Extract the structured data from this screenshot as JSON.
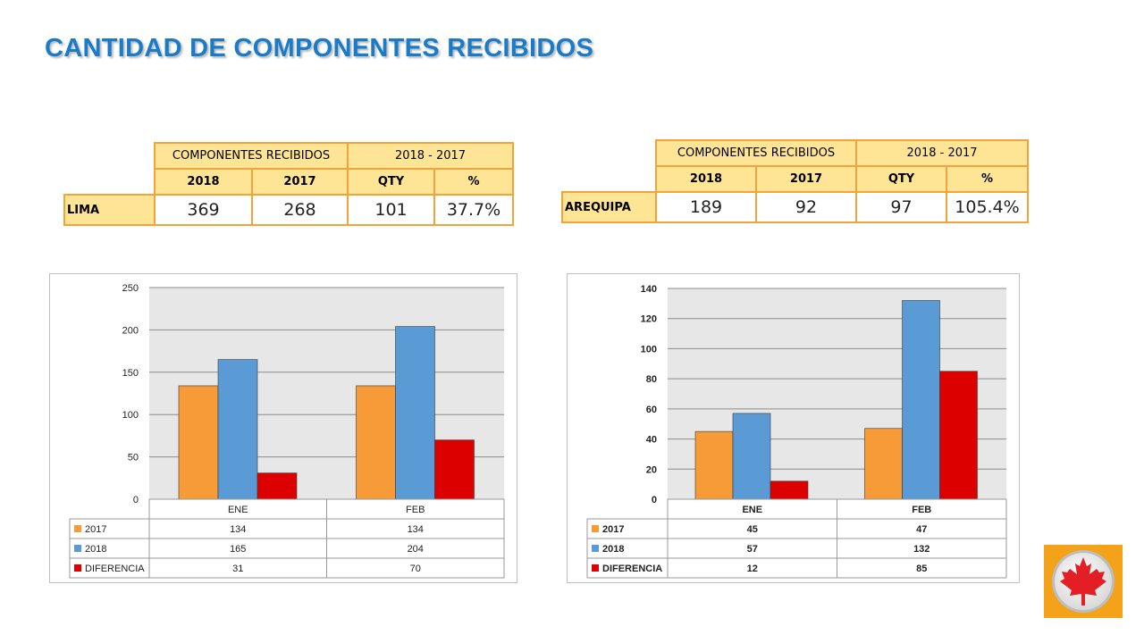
{
  "page": {
    "title": "CANTIDAD DE COMPONENTES RECIBIDOS"
  },
  "tables": [
    {
      "header_main": "COMPONENTES RECIBIDOS",
      "header_period": "2018 - 2017",
      "cols": [
        "2018",
        "2017",
        "QTY",
        "%"
      ],
      "row_label": "LIMA",
      "values": [
        "369",
        "268",
        "101",
        "37.7%"
      ]
    },
    {
      "header_main": "COMPONENTES RECIBIDOS",
      "header_period": "2018 - 2017",
      "cols": [
        "2018",
        "2017",
        "QTY",
        "%"
      ],
      "row_label": "AREQUIPA",
      "values": [
        "189",
        "92",
        "97",
        "105.4%"
      ]
    }
  ],
  "chart_data": [
    {
      "type": "bar",
      "categories": [
        "ENE",
        "FEB"
      ],
      "series": [
        {
          "name": "2017",
          "values": [
            134,
            134
          ],
          "color": "#f79a38"
        },
        {
          "name": "2018",
          "values": [
            165,
            204
          ],
          "color": "#5b9bd5"
        },
        {
          "name": "DIFERENCIA",
          "values": [
            31,
            70
          ],
          "color": "#dd0000"
        }
      ],
      "ylim": [
        0,
        250
      ],
      "yticks": [
        0,
        50,
        100,
        150,
        200,
        250
      ],
      "grid": true,
      "legend": "data-table-below",
      "label_bold": false
    },
    {
      "type": "bar",
      "categories": [
        "ENE",
        "FEB"
      ],
      "series": [
        {
          "name": "2017",
          "values": [
            45,
            47
          ],
          "color": "#f79a38"
        },
        {
          "name": "2018",
          "values": [
            57,
            132
          ],
          "color": "#5b9bd5"
        },
        {
          "name": "DIFERENCIA",
          "values": [
            12,
            85
          ],
          "color": "#dd0000"
        }
      ],
      "ylim": [
        0,
        140
      ],
      "yticks": [
        0,
        20,
        40,
        60,
        80,
        100,
        120,
        140
      ],
      "grid": true,
      "legend": "data-table-below",
      "label_bold": true
    }
  ],
  "logo": {
    "icon": "maple-leaf-icon",
    "bg": "#f5a21b",
    "leaf_color": "#e31e24"
  }
}
